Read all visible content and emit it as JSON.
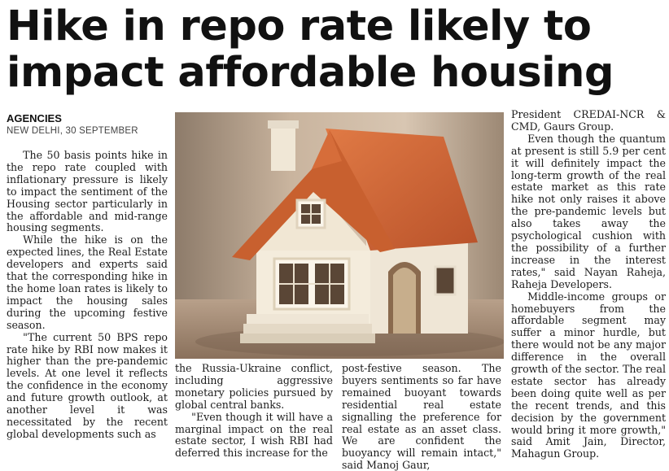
{
  "headline": {
    "line1": "Hike in repo rate likely to",
    "line2": "impact affordable housing"
  },
  "byline": {
    "agency": "AGENCIES",
    "dateline": "NEW DELHI, 30 SEPTEMBER"
  },
  "photo": {
    "subject": "model-house-icon"
  },
  "col1": {
    "p1": "The 50 basis points hike in the repo rate coupled with inflationary pressure is likely to impact the sentiment of the Housing sector particularly in the affordable and mid-range housing segments.",
    "p2": "While the hike is on the expected lines, the Real Estate developers and experts said that the corresponding hike in the home loan rates is likely to impact the housing sales during the upcoming festive season.",
    "p3": "\"The current 50 BPS repo rate hike by RBI now makes it higher than the pre-pandemic levels. At one level it reflects the confidence in the economy and future growth outlook, at another level it was necessitated by the recent global developments such as"
  },
  "col2": {
    "p1": "the Russia-Ukraine conflict, including aggressive monetary policies pursued by global central banks.",
    "p2": "\"Even though it will have a marginal impact on the real estate sector, I wish RBI had deferred this increase for the"
  },
  "col3": {
    "p1": "post-festive season. The buyers sentiments so far have remained buoyant towards residential real estate signalling the preference for real estate as an asset class. We are confident the buoyancy will remain intact,\" said Manoj Gaur,"
  },
  "col4": {
    "p1": "President CREDAI-NCR & CMD, Gaurs Group.",
    "p2": "Even though the quantum at present is still 5.9 per cent it will definitely impact the long-term growth of the real estate market as this rate hike not only raises it above the pre-pandemic levels but also takes away the psychological cushion with the possibility of a further increase in the interest rates,\" said Nayan Raheja, Raheja Developers.",
    "p3": "Middle-income groups or homebuyers from the affordable segment may suffer a minor hurdle, but there would not be any major difference in the overall growth of the sector. The real estate sector has already been doing quite well as per the recent trends, and this decision by the government would bring it more growth,\" said Amit Jain, Director, Mahagun Group."
  }
}
